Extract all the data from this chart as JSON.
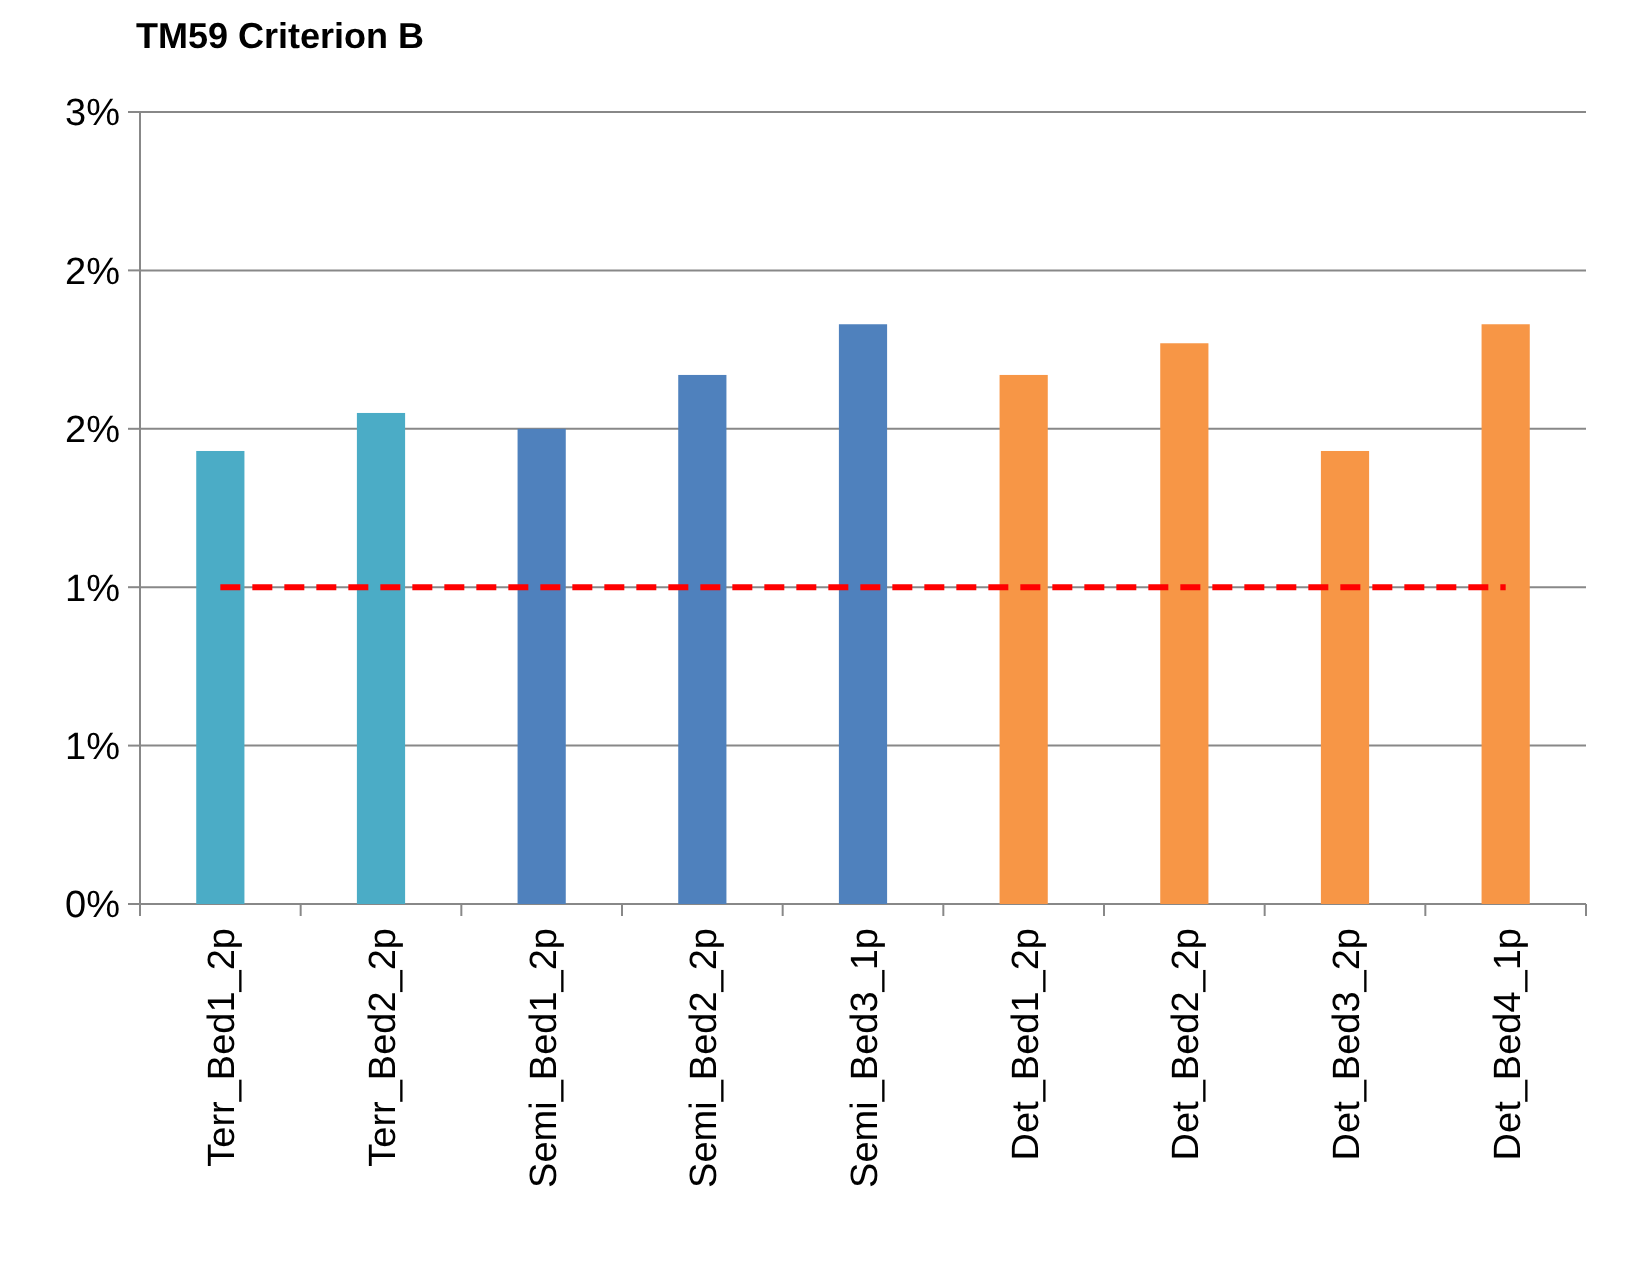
{
  "chart_data": {
    "type": "bar",
    "title": "TM59 Criterion B",
    "categories": [
      "Terr_Bed1_2p",
      "Terr_Bed2_2p",
      "Semi_Bed1_2p",
      "Semi_Bed2_2p",
      "Semi_Bed3_1p",
      "Det_Bed1_2p",
      "Det_Bed2_2p",
      "Det_Bed3_2p",
      "Det_Bed4_1p"
    ],
    "values": [
      1.43,
      1.55,
      1.5,
      1.67,
      1.83,
      1.67,
      1.77,
      1.43,
      1.83
    ],
    "colors": [
      "#4bacc6",
      "#4bacc6",
      "#4f81bd",
      "#4f81bd",
      "#4f81bd",
      "#f79646",
      "#f79646",
      "#f79646",
      "#f79646"
    ],
    "ylim": [
      0,
      2.5
    ],
    "yticks": [
      {
        "value": 0,
        "label": "0%"
      },
      {
        "value": 0.5,
        "label": "1%"
      },
      {
        "value": 1,
        "label": "1%"
      },
      {
        "value": 1.5,
        "label": "2%"
      },
      {
        "value": 2,
        "label": "2%"
      },
      {
        "value": 2.5,
        "label": "3%"
      }
    ],
    "grid": "y",
    "ref_lines": [
      {
        "axis": "y",
        "value": 1,
        "color": "#ff0000",
        "line_style": "dashed"
      }
    ]
  }
}
